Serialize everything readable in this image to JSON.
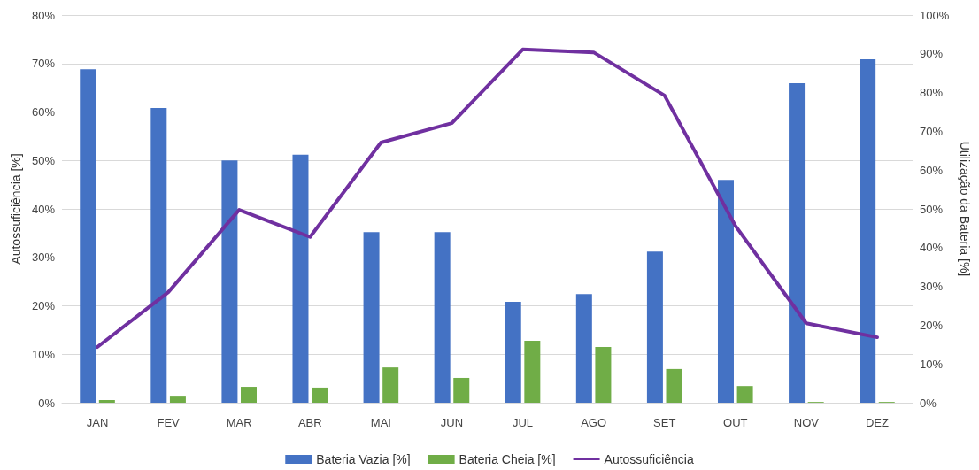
{
  "chart_data": {
    "type": "bar",
    "ylabel": "Autossuficiência [%]",
    "y2label": "Utilização da Bateria [%]",
    "categories": [
      "JAN",
      "FEV",
      "MAR",
      "ABR",
      "MAI",
      "JUN",
      "JUL",
      "AGO",
      "SET",
      "OUT",
      "NOV",
      "DEZ"
    ],
    "series": [
      {
        "name": "Bateria Vazia [%]",
        "color": "#4472c4",
        "axis": "y2",
        "values": [
          86,
          76,
          62.5,
          64,
          44,
          44,
          26,
          28,
          39,
          57.5,
          82.4,
          88.6
        ]
      },
      {
        "name": "Bateria Cheia [%]",
        "color": "#70ad47",
        "axis": "y2",
        "values": [
          0.7,
          1.8,
          4.1,
          3.9,
          9.1,
          6.4,
          16,
          14.4,
          8.7,
          4.3,
          0.2,
          0.2
        ]
      },
      {
        "name": "Autossuficiência",
        "type": "line",
        "color": "#7030a0",
        "axis": "y",
        "values": [
          11.5,
          22.8,
          39.8,
          34.2,
          53.7,
          57.7,
          72.9,
          72.3,
          63.4,
          36.5,
          16.4,
          13.5
        ]
      }
    ],
    "ylim": [
      0,
      80
    ],
    "yticks": [
      {
        "value": 0,
        "label": "0%"
      },
      {
        "value": 10,
        "label": "10%"
      },
      {
        "value": 20,
        "label": "20%"
      },
      {
        "value": 30,
        "label": "30%"
      },
      {
        "value": 40,
        "label": "40%"
      },
      {
        "value": 50,
        "label": "50%"
      },
      {
        "value": 60,
        "label": "60%"
      },
      {
        "value": 70,
        "label": "70%"
      },
      {
        "value": 80,
        "label": "80%"
      }
    ],
    "y2lim": [
      0,
      100
    ],
    "y2ticks": [
      {
        "value": 0,
        "label": "0%"
      },
      {
        "value": 10,
        "label": "10%"
      },
      {
        "value": 20,
        "label": "20%"
      },
      {
        "value": 30,
        "label": "30%"
      },
      {
        "value": 40,
        "label": "40%"
      },
      {
        "value": 50,
        "label": "50%"
      },
      {
        "value": 60,
        "label": "60%"
      },
      {
        "value": 70,
        "label": "70%"
      },
      {
        "value": 80,
        "label": "80%"
      },
      {
        "value": 90,
        "label": "90%"
      },
      {
        "value": 100,
        "label": "100%"
      }
    ],
    "grid": "y",
    "legend": "bottom",
    "marker": "none",
    "line_style": "solid"
  }
}
